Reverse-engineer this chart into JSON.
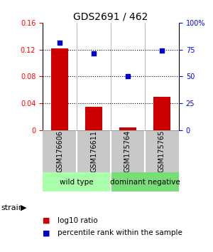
{
  "title": "GDS2691 / 462",
  "samples": [
    "GSM176606",
    "GSM176611",
    "GSM175764",
    "GSM175765"
  ],
  "log10_ratio": [
    0.122,
    0.035,
    0.004,
    0.05
  ],
  "percentile_rank": [
    0.815,
    0.715,
    0.505,
    0.74
  ],
  "groups": [
    {
      "name": "wild type",
      "samples": [
        0,
        1
      ],
      "color": "#aaffaa"
    },
    {
      "name": "dominant negative",
      "samples": [
        2,
        3
      ],
      "color": "#77dd77"
    }
  ],
  "bar_color": "#cc0000",
  "point_color": "#0000cc",
  "ylim_left": [
    0,
    0.16
  ],
  "ylim_right": [
    0,
    1.0
  ],
  "yticks_left": [
    0,
    0.04,
    0.08,
    0.12,
    0.16
  ],
  "yticks_right": [
    0,
    0.25,
    0.5,
    0.75,
    1.0
  ],
  "ytick_labels_left": [
    "0",
    "0.04",
    "0.08",
    "0.12",
    "0.16"
  ],
  "ytick_labels_right": [
    "0",
    "25",
    "50",
    "75",
    "100%"
  ],
  "strain_label": "strain",
  "legend_bar_label": "log10 ratio",
  "legend_point_label": "percentile rank within the sample",
  "sample_panel_color": "#c8c8c8",
  "background_color": "#ffffff",
  "title_fontsize": 10,
  "tick_fontsize": 7,
  "sample_fontsize": 7,
  "group_fontsize": 7.5,
  "legend_fontsize": 7.5
}
